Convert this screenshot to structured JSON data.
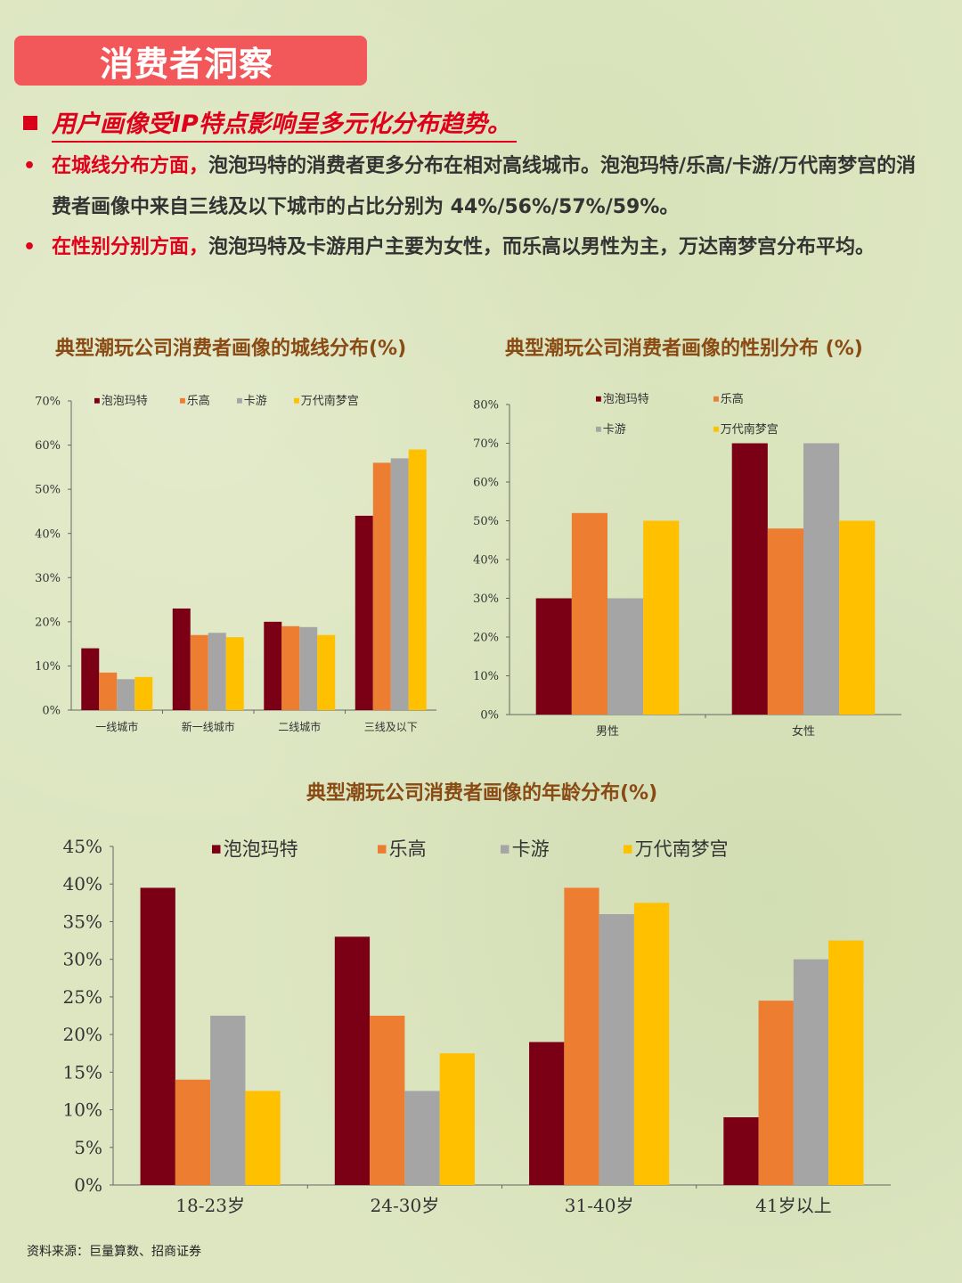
{
  "header": {
    "title": "消费者洞察"
  },
  "headline": "用户画像受IP特点影响呈多元化分布趋势。",
  "bullets": [
    {
      "lead": "在城线分布方面，",
      "text": "泡泡玛特的消费者更多分布在相对高线城市。泡泡玛特/乐高/卡游/万代南梦宫的消费者画像中来自三线及以下城市的占比分别为 44%/56%/57%/59%。"
    },
    {
      "lead": "在性别分别方面，",
      "text": "泡泡玛特及卡游用户主要为女性，而乐高以男性为主，万达南梦宫分布平均。"
    }
  ],
  "source": "资料来源：巨量算数、招商证券",
  "colors": {
    "泡泡玛特": "#7b0015",
    "乐高": "#ed7d31",
    "卡游": "#a5a5a5",
    "万代南梦宫": "#ffc000"
  },
  "chart_data": [
    {
      "type": "bar",
      "title": "典型潮玩公司消费者画像的城线分布(%)",
      "categories": [
        "一线城市",
        "新一线城市",
        "二线城市",
        "三线及以下"
      ],
      "series": [
        {
          "name": "泡泡玛特",
          "values": [
            14,
            23,
            20,
            44
          ]
        },
        {
          "name": "乐高",
          "values": [
            8.5,
            17,
            19,
            56
          ]
        },
        {
          "name": "卡游",
          "values": [
            7,
            17.5,
            18.8,
            57
          ]
        },
        {
          "name": "万代南梦宫",
          "values": [
            7.5,
            16.5,
            17,
            59
          ]
        }
      ],
      "ylim": [
        0,
        70
      ],
      "yticks": [
        "0%",
        "10%",
        "20%",
        "30%",
        "40%",
        "50%",
        "60%",
        "70%"
      ],
      "legend": "top"
    },
    {
      "type": "bar",
      "title": "典型潮玩公司消费者画像的性别分布 (%)",
      "categories": [
        "男性",
        "女性"
      ],
      "series": [
        {
          "name": "泡泡玛特",
          "values": [
            30,
            70
          ]
        },
        {
          "name": "乐高",
          "values": [
            52,
            48
          ]
        },
        {
          "name": "卡游",
          "values": [
            30,
            70
          ]
        },
        {
          "name": "万代南梦宫",
          "values": [
            50,
            50
          ]
        }
      ],
      "ylim": [
        0,
        80
      ],
      "yticks": [
        "0%",
        "10%",
        "20%",
        "30%",
        "40%",
        "50%",
        "60%",
        "70%",
        "80%"
      ],
      "legend": "top-right"
    },
    {
      "type": "bar",
      "title": "典型潮玩公司消费者画像的年龄分布(%)",
      "categories": [
        "18-23岁",
        "24-30岁",
        "31-40岁",
        "41岁以上"
      ],
      "series": [
        {
          "name": "泡泡玛特",
          "values": [
            39.5,
            33,
            19,
            9
          ]
        },
        {
          "name": "乐高",
          "values": [
            14,
            22.5,
            39.5,
            24.5
          ]
        },
        {
          "name": "卡游",
          "values": [
            22.5,
            12.5,
            36,
            30
          ]
        },
        {
          "name": "万代南梦宫",
          "values": [
            12.5,
            17.5,
            37.5,
            32.5
          ]
        }
      ],
      "ylim": [
        0,
        45
      ],
      "yticks": [
        "0%",
        "5%",
        "10%",
        "15%",
        "20%",
        "25%",
        "30%",
        "35%",
        "40%",
        "45%"
      ],
      "legend": "top"
    }
  ]
}
